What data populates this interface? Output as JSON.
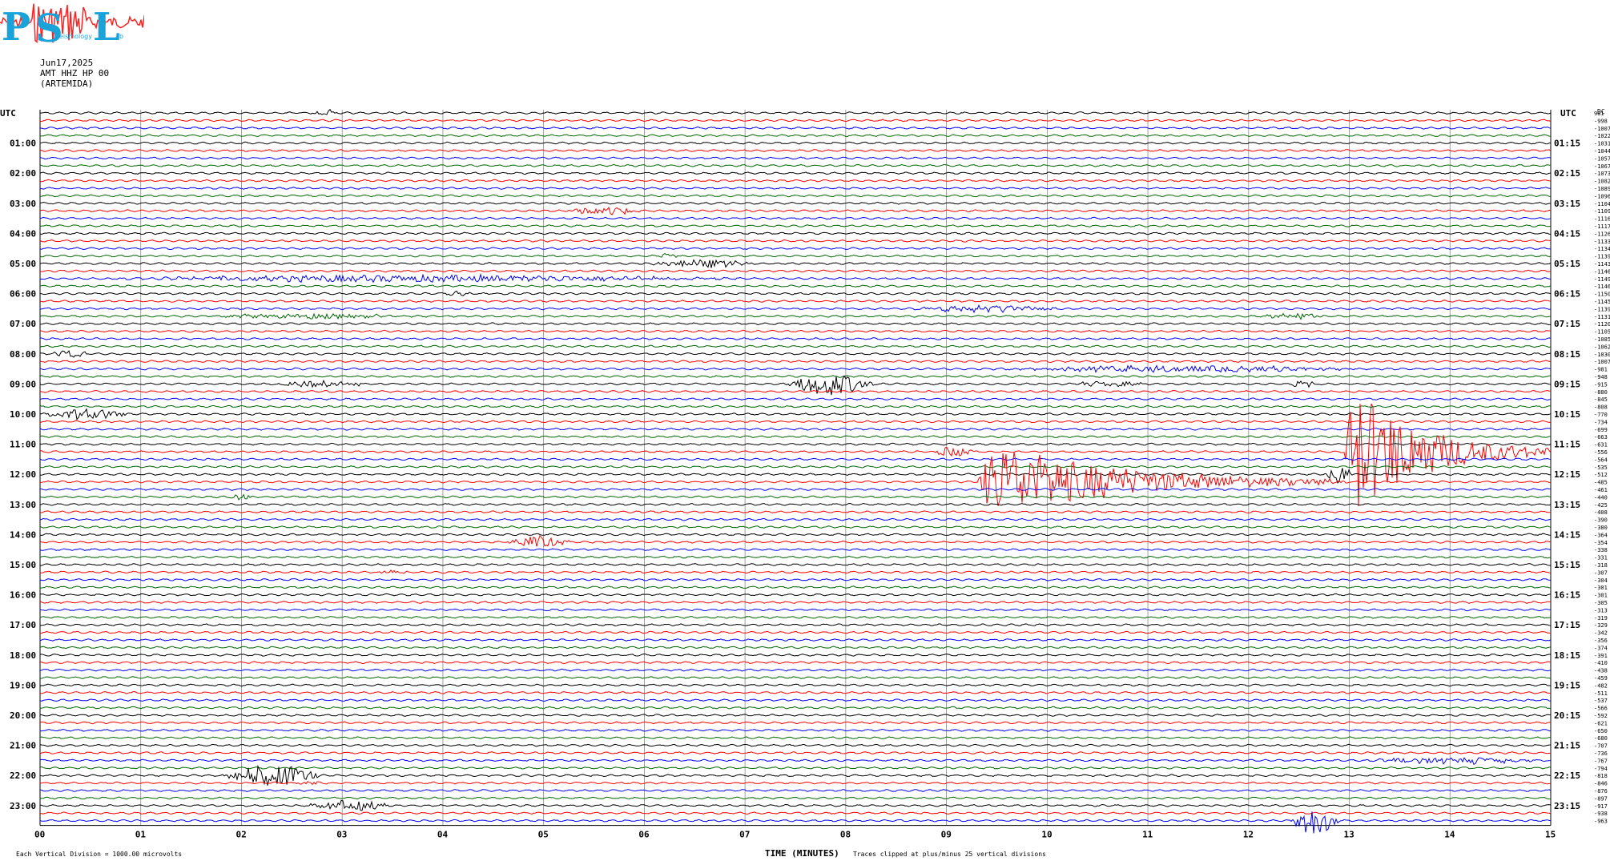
{
  "header": {
    "logo_letters": [
      "P",
      "S",
      "L"
    ],
    "logo_small": [
      "eismology",
      "ab"
    ],
    "date": "Jun17,2025",
    "channel": "AMT HHZ HP 00",
    "station": "(ARTEMIDA)"
  },
  "colors": {
    "black": "#000000",
    "red": "#ff0000",
    "blue": "#0000ff",
    "green": "#006600",
    "grid": "#888888",
    "logo_cyan": "#1aa3d9",
    "logo_red": "#ff2222"
  },
  "axes": {
    "left_label": "UTC",
    "right_label": "UTC",
    "right_top_label": "DC",
    "left_times": [
      "01:00",
      "02:00",
      "03:00",
      "04:00",
      "05:00",
      "06:00",
      "07:00",
      "08:00",
      "09:00",
      "10:00",
      "11:00",
      "12:00",
      "13:00",
      "14:00",
      "15:00",
      "16:00",
      "17:00",
      "18:00",
      "19:00",
      "20:00",
      "21:00",
      "22:00",
      "23:00"
    ],
    "right_times": [
      "01:15",
      "02:15",
      "03:15",
      "04:15",
      "05:15",
      "06:15",
      "07:15",
      "08:15",
      "09:15",
      "10:15",
      "11:15",
      "12:15",
      "13:15",
      "14:15",
      "15:15",
      "16:15",
      "17:15",
      "18:15",
      "19:15",
      "20:15",
      "21:15",
      "22:15",
      "23:15"
    ],
    "x_ticks": [
      "00",
      "01",
      "02",
      "03",
      "04",
      "05",
      "06",
      "07",
      "08",
      "09",
      "10",
      "11",
      "12",
      "13",
      "14",
      "15"
    ],
    "xlabel": "TIME (MINUTES)"
  },
  "footer": {
    "left_note": "Each Vertical Division = 1000.00 microvolts",
    "clip_note": "Traces clipped at plus/minus 25 vertical divisions"
  },
  "chart_data": {
    "type": "line",
    "title": "",
    "xlabel": "TIME (MINUTES)",
    "xlim": [
      0,
      15
    ],
    "traces_per_hour": 4,
    "trace_minutes": 15,
    "trace_color_cycle": [
      "black",
      "red",
      "blue",
      "green"
    ],
    "dc_offsets": [
      "981",
      "-998",
      "-1007",
      "-1022",
      "-1031",
      "-1044",
      "-1057",
      "-1067",
      "-1073",
      "-1082",
      "-1089",
      "-1096",
      "-1104",
      "-1109",
      "-1116",
      "-1117",
      "-1126",
      "-1133",
      "-1134",
      "-1139",
      "-1143",
      "-1146",
      "-1149",
      "-1146",
      "-1150",
      "-1145",
      "-1139",
      "-1131",
      "-1120",
      "-1105",
      "-1085",
      "-1062",
      "-1030",
      "-1007",
      "-981",
      "-948",
      "-915",
      "-880",
      "-845",
      "-808",
      "-770",
      "-734",
      "-699",
      "-663",
      "-631",
      "-556",
      "-564",
      "-535",
      "-512",
      "-485",
      "-461",
      "-440",
      "-425",
      "-408",
      "-390",
      "-380",
      "-364",
      "-354",
      "-338",
      "-331",
      "-318",
      "-307",
      "-304",
      "-301",
      "-301",
      "-305",
      "-313",
      "-319",
      "-329",
      "-342",
      "-356",
      "-374",
      "-391",
      "-410",
      "-438",
      "-459",
      "-482",
      "-511",
      "-537",
      "-566",
      "-592",
      "-621",
      "-650",
      "-680",
      "-707",
      "-736",
      "-767",
      "-794",
      "-818",
      "-846",
      "-876",
      "-897",
      "-917",
      "-938",
      "-963"
    ],
    "events": [
      {
        "trace": 0,
        "start": 2.7,
        "end": 3.0,
        "amp": 4
      },
      {
        "trace": 13,
        "start": 5.2,
        "end": 6.0,
        "amp": 5
      },
      {
        "trace": 19,
        "start": 6.1,
        "end": 6.4,
        "amp": 3
      },
      {
        "trace": 20,
        "start": 6.0,
        "end": 7.1,
        "amp": 5
      },
      {
        "trace": 22,
        "start": 0.5,
        "end": 7.1,
        "amp": 4
      },
      {
        "trace": 24,
        "start": 4.0,
        "end": 4.3,
        "amp": 3
      },
      {
        "trace": 26,
        "start": 8.6,
        "end": 10.2,
        "amp": 4
      },
      {
        "trace": 27,
        "start": 1.6,
        "end": 3.7,
        "amp": 3
      },
      {
        "trace": 27,
        "start": 12.1,
        "end": 12.8,
        "amp": 4
      },
      {
        "trace": 32,
        "start": 0.1,
        "end": 0.5,
        "amp": 5
      },
      {
        "trace": 34,
        "start": 9.4,
        "end": 13.2,
        "amp": 4
      },
      {
        "trace": 36,
        "start": 2.3,
        "end": 3.3,
        "amp": 4
      },
      {
        "trace": 36,
        "start": 7.4,
        "end": 8.3,
        "amp": 14
      },
      {
        "trace": 36,
        "start": 10.2,
        "end": 11.0,
        "amp": 3
      },
      {
        "trace": 36,
        "start": 12.4,
        "end": 12.7,
        "amp": 4
      },
      {
        "trace": 40,
        "start": 0.0,
        "end": 0.9,
        "amp": 6
      },
      {
        "trace": 45,
        "start": 8.85,
        "end": 9.3,
        "amp": 6
      },
      {
        "trace": 45,
        "start": 12.95,
        "end": 15.0,
        "amp": 95
      },
      {
        "trace": 48,
        "start": 12.75,
        "end": 13.05,
        "amp": 12
      },
      {
        "trace": 49,
        "start": 9.3,
        "end": 13.0,
        "amp": 55
      },
      {
        "trace": 51,
        "start": 1.9,
        "end": 2.1,
        "amp": 5
      },
      {
        "trace": 57,
        "start": 4.6,
        "end": 5.3,
        "amp": 7
      },
      {
        "trace": 61,
        "start": 3.3,
        "end": 3.7,
        "amp": 3
      },
      {
        "trace": 88,
        "start": 1.8,
        "end": 2.8,
        "amp": 14
      },
      {
        "trace": 89,
        "start": 2.5,
        "end": 2.8,
        "amp": 3
      },
      {
        "trace": 86,
        "start": 13.1,
        "end": 15.0,
        "amp": 4
      },
      {
        "trace": 92,
        "start": 2.6,
        "end": 3.5,
        "amp": 6
      },
      {
        "trace": 94,
        "start": 12.4,
        "end": 12.9,
        "amp": 18
      },
      {
        "trace": 95,
        "start": 8.0,
        "end": 8.5,
        "amp": 3
      }
    ]
  }
}
